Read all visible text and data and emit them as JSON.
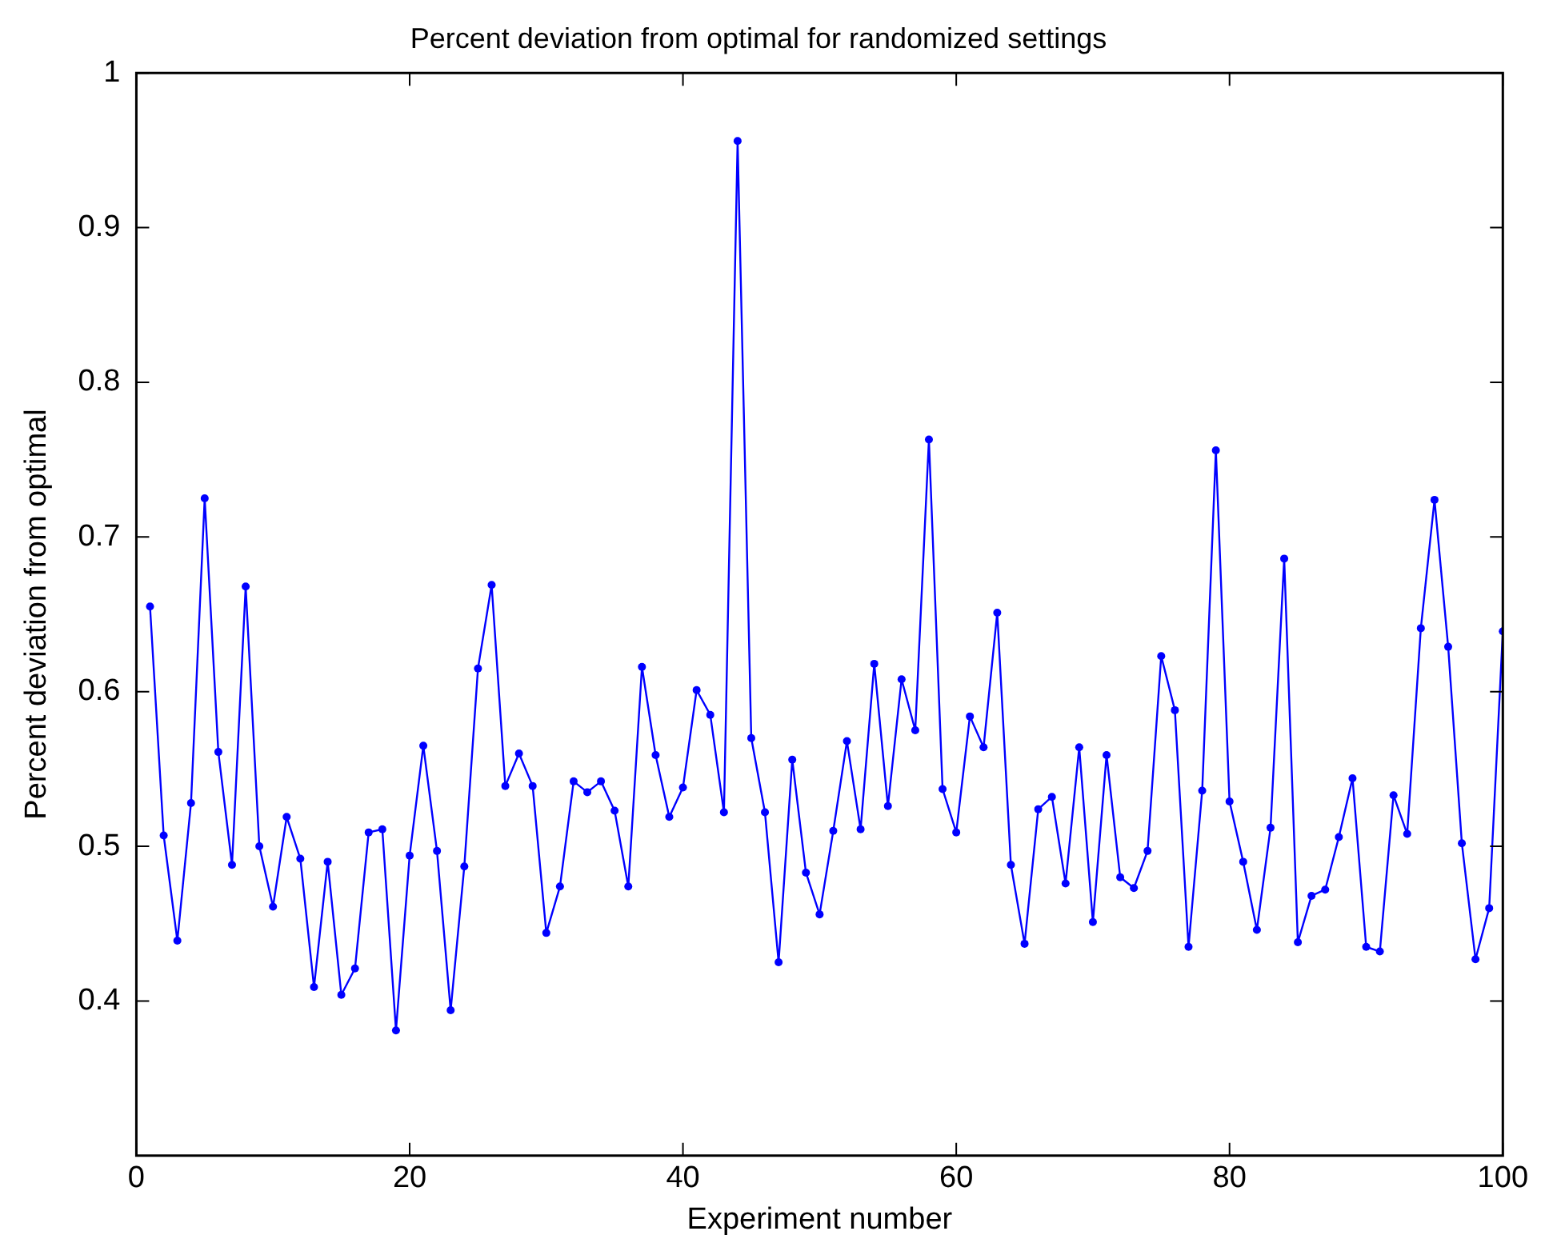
{
  "chart_data": {
    "type": "line",
    "title": "Percent deviation from optimal for randomized settings",
    "xlabel": "Experiment number",
    "ylabel": "Percent deviation from optimal",
    "x": [
      1,
      2,
      3,
      4,
      5,
      6,
      7,
      8,
      9,
      10,
      11,
      12,
      13,
      14,
      15,
      16,
      17,
      18,
      19,
      20,
      21,
      22,
      23,
      24,
      25,
      26,
      27,
      28,
      29,
      30,
      31,
      32,
      33,
      34,
      35,
      36,
      37,
      38,
      39,
      40,
      41,
      42,
      43,
      44,
      45,
      46,
      47,
      48,
      49,
      50,
      51,
      52,
      53,
      54,
      55,
      56,
      57,
      58,
      59,
      60,
      61,
      62,
      63,
      64,
      65,
      66,
      67,
      68,
      69,
      70,
      71,
      72,
      73,
      74,
      75,
      76,
      77,
      78,
      79,
      80,
      81,
      82,
      83,
      84,
      85,
      86,
      87,
      88,
      89,
      90,
      91,
      92,
      93,
      94,
      95,
      96,
      97,
      98,
      99,
      100
    ],
    "series": [
      {
        "color": "#0000ff",
        "values": [
          0.655,
          0.507,
          0.439,
          0.528,
          0.725,
          0.561,
          0.488,
          0.668,
          0.5,
          0.461,
          0.519,
          0.492,
          0.409,
          0.49,
          0.404,
          0.421,
          0.509,
          0.511,
          0.381,
          0.494,
          0.565,
          0.497,
          0.394,
          0.487,
          0.615,
          0.669,
          0.539,
          0.56,
          0.539,
          0.444,
          0.474,
          0.542,
          0.535,
          0.542,
          0.523,
          0.474,
          0.616,
          0.559,
          0.519,
          0.538,
          0.601,
          0.585,
          0.522,
          0.956,
          0.57,
          0.522,
          0.425,
          0.556,
          0.483,
          0.456,
          0.51,
          0.568,
          0.511,
          0.618,
          0.526,
          0.608,
          0.575,
          0.763,
          0.537,
          0.509,
          0.584,
          0.564,
          0.651,
          0.488,
          0.437,
          0.524,
          0.532,
          0.476,
          0.564,
          0.451,
          0.559,
          0.48,
          0.473,
          0.497,
          0.623,
          0.588,
          0.435,
          0.536,
          0.756,
          0.529,
          0.49,
          0.446,
          0.512,
          0.686,
          0.438,
          0.468,
          0.472,
          0.506,
          0.544,
          0.435,
          0.432,
          0.533,
          0.508,
          0.641,
          0.724,
          0.629,
          0.502,
          0.427,
          0.46,
          0.639
        ]
      }
    ],
    "xlim": [
      0,
      100
    ],
    "xticks": [
      0,
      20,
      40,
      60,
      80,
      100
    ],
    "ylim": [
      0.3,
      1
    ],
    "yticks": [
      0.4,
      0.5,
      0.6,
      0.7,
      0.8,
      0.9,
      1
    ],
    "grid": false,
    "legend": false,
    "marker": "circle",
    "line_style": "solid"
  }
}
